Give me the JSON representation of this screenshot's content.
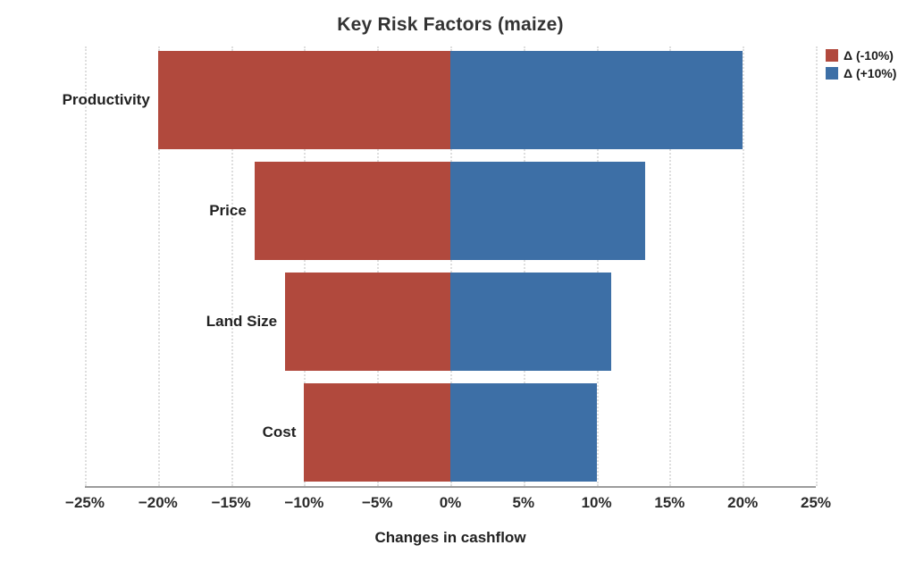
{
  "title": "Key Risk Factors (maize)",
  "xlabel": "Changes in cashflow",
  "legend": {
    "negative_label": "Δ (-10%)",
    "positive_label": "Δ (+10%)"
  },
  "colors": {
    "negative_bar": "#b1493d",
    "positive_bar": "#3d6fa6",
    "gridline": "#dedede",
    "axis_line": "#9c9c9c",
    "text": "#222222"
  },
  "chart_data": {
    "type": "bar",
    "orientation": "horizontal-diverging-tornado",
    "title": "Key Risk Factors (maize)",
    "xlabel": "Changes in cashflow",
    "ylabel": "",
    "categories": [
      "Productivity",
      "Price",
      "Land Size",
      "Cost"
    ],
    "series": [
      {
        "name": "Δ (-10%)",
        "color": "#b1493d",
        "values": [
          -20,
          -13.4,
          -11.3,
          -10
        ]
      },
      {
        "name": "Δ (+10%)",
        "color": "#3d6fa6",
        "values": [
          20,
          13.3,
          11.0,
          10
        ]
      }
    ],
    "xlim": [
      -25,
      25
    ],
    "x_ticks": [
      -25,
      -20,
      -15,
      -10,
      -5,
      0,
      5,
      10,
      15,
      20,
      25
    ],
    "x_tick_labels": [
      "−25%",
      "−20%",
      "−15%",
      "−10%",
      "−5%",
      "0%",
      "5%",
      "10%",
      "15%",
      "20%",
      "25%"
    ],
    "grid": "vertical-dotted",
    "legend_position": "top-right-outside",
    "bar_height_ratio": 0.89
  }
}
